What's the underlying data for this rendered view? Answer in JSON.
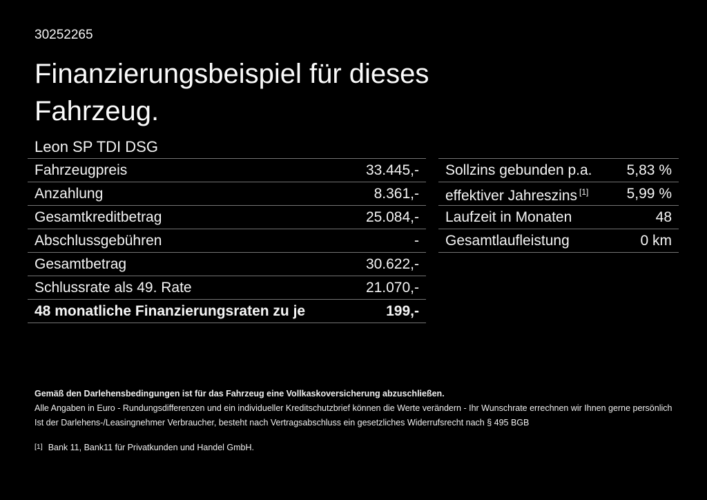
{
  "page": {
    "background": "#000000",
    "text_color": "#f5f5f5",
    "divider_color": "#757575"
  },
  "header": {
    "doc_number": "30252265",
    "title": "Finanzierungsbeispiel für dieses Fahrzeug.",
    "subtitle": "Leon SP TDI DSG"
  },
  "finance_table_left": {
    "rows": [
      {
        "label": "Fahrzeugpreis",
        "value": "33.445,-"
      },
      {
        "label": "Anzahlung",
        "value": "8.361,-"
      },
      {
        "label": "Gesamtkreditbetrag",
        "value": "25.084,-"
      },
      {
        "label": "Abschlussgebühren",
        "value": "-"
      },
      {
        "label": "Gesamtbetrag",
        "value": "30.622,-"
      },
      {
        "label": "Schlussrate als 49. Rate",
        "value": "21.070,-"
      },
      {
        "label": "48 monatliche Finanzierungsraten zu je",
        "value": "199,-",
        "bold": true
      }
    ]
  },
  "finance_table_right": {
    "rows": [
      {
        "label": "Sollzins gebunden p.a.",
        "sup": "",
        "value": "5,83 %"
      },
      {
        "label": "effektiver Jahreszins",
        "sup": "[1]",
        "value": "5,99 %"
      },
      {
        "label": "Laufzeit in Monaten",
        "sup": "",
        "value": "48"
      },
      {
        "label": "Gesamtlaufleistung",
        "sup": "",
        "value": "0 km"
      }
    ]
  },
  "footer": {
    "bold_note": "Gemäß den Darlehensbedingungen ist für das Fahrzeug eine Vollkaskoversicherung abzuschließen.",
    "notes": [
      "Alle Angaben in Euro - Rundungsdifferenzen und ein individueller Kreditschutzbrief können die Werte verändern - Ihr Wunschrate errechnen wir Ihnen gerne persönlich",
      "Ist der Darlehens-/Leasingnehmer Verbraucher, besteht nach Vertragsabschluss ein gesetzliches Widerrufsrecht nach § 495 BGB"
    ],
    "footnote_marker": "[1]",
    "footnote": "Bank 11, Bank11 für Privatkunden und Handel GmbH."
  }
}
